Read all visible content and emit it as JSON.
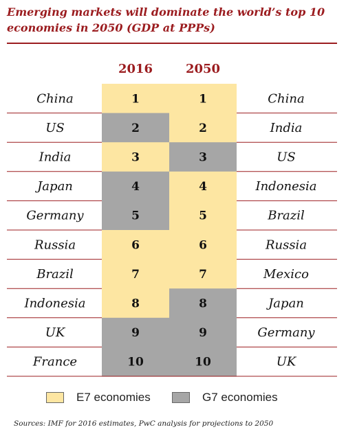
{
  "title": "Emerging markets will dominate the world’s top 10 economies in 2050 (GDP at PPPs)",
  "chart_data": {
    "type": "table",
    "columns": [
      "2016",
      "2050"
    ],
    "rows": [
      {
        "rank": "1",
        "left": "China",
        "left_group": "E7",
        "right": "China",
        "right_group": "E7"
      },
      {
        "rank": "2",
        "left": "US",
        "left_group": "G7",
        "right": "India",
        "right_group": "E7"
      },
      {
        "rank": "3",
        "left": "India",
        "left_group": "E7",
        "right": "US",
        "right_group": "G7"
      },
      {
        "rank": "4",
        "left": "Japan",
        "left_group": "G7",
        "right": "Indonesia",
        "right_group": "E7"
      },
      {
        "rank": "5",
        "left": "Germany",
        "left_group": "G7",
        "right": "Brazil",
        "right_group": "E7"
      },
      {
        "rank": "6",
        "left": "Russia",
        "left_group": "E7",
        "right": "Russia",
        "right_group": "E7"
      },
      {
        "rank": "7",
        "left": "Brazil",
        "left_group": "E7",
        "right": "Mexico",
        "right_group": "E7"
      },
      {
        "rank": "8",
        "left": "Indonesia",
        "left_group": "E7",
        "right": "Japan",
        "right_group": "G7"
      },
      {
        "rank": "9",
        "left": "UK",
        "left_group": "G7",
        "right": "Germany",
        "right_group": "G7"
      },
      {
        "rank": "10",
        "left": "France",
        "left_group": "G7",
        "right": "UK",
        "right_group": "G7"
      }
    ],
    "legend": [
      {
        "group": "E7",
        "label": "E7 economies",
        "color": "#fde6a2"
      },
      {
        "group": "G7",
        "label": "G7 economies",
        "color": "#a6a6a6"
      }
    ]
  },
  "colors": {
    "accent": "#9b1c1f",
    "e7": "#fde6a2",
    "g7": "#a6a6a6",
    "rule": "#9b1c1f"
  },
  "source": "Sources: IMF for 2016 estimates, PwC analysis for projections to 2050"
}
